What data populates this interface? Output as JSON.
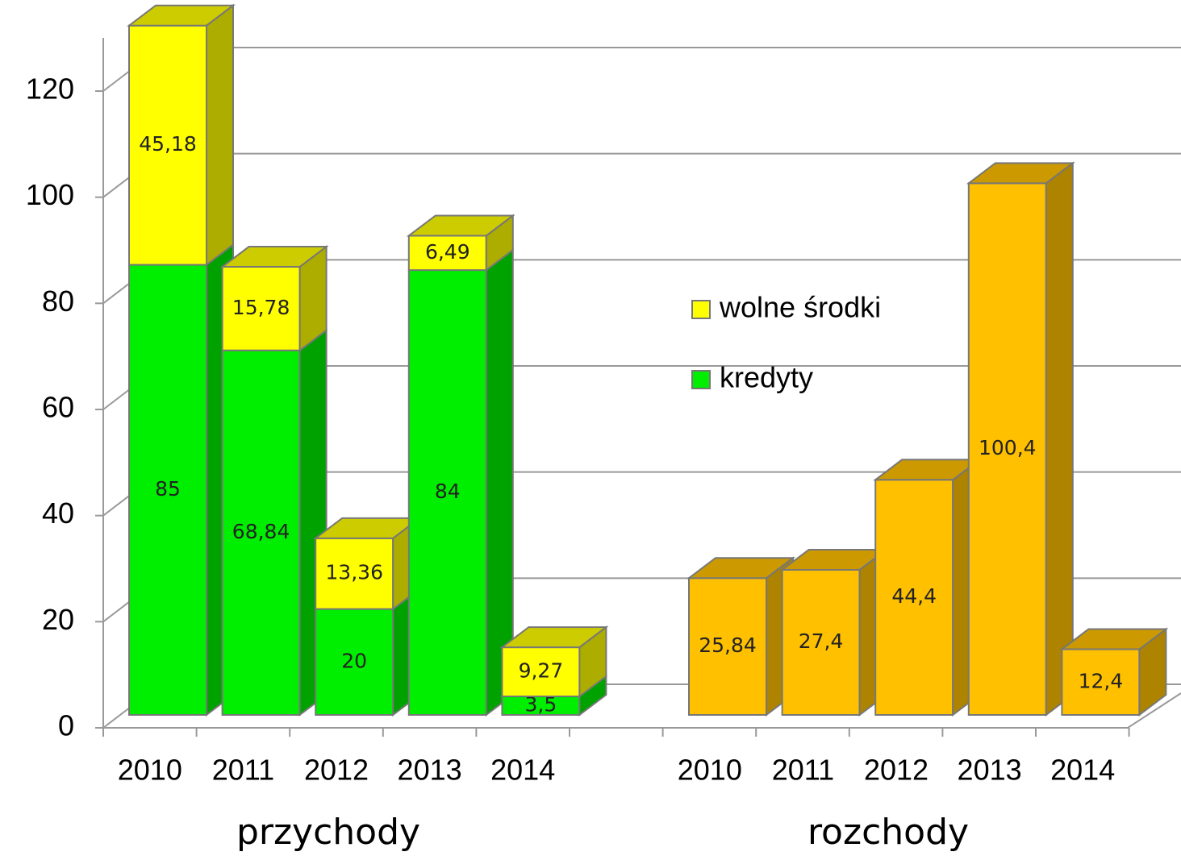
{
  "chart_data": {
    "type": "bar",
    "ylim": [
      0,
      130
    ],
    "yticks": [
      0,
      20,
      40,
      60,
      80,
      100,
      120
    ],
    "grid": true,
    "groups": [
      {
        "label": "przychody",
        "categories": [
          "2010",
          "2011",
          "2012",
          "2013",
          "2014"
        ],
        "series": [
          {
            "name": "kredyty",
            "color": "#00ee00",
            "values": [
              85,
              68.84,
              20,
              84,
              3.5
            ],
            "value_labels": [
              "85",
              "68,84",
              "20",
              "84",
              "3,5"
            ]
          },
          {
            "name": "wolne środki",
            "color": "#ffff00",
            "values": [
              45.18,
              15.78,
              13.36,
              6.49,
              9.27
            ],
            "value_labels": [
              "45,18",
              "15,78",
              "13,36",
              "6,49",
              "9,27"
            ]
          }
        ]
      },
      {
        "label": "rozchody",
        "categories": [
          "2010",
          "2011",
          "2012",
          "2013",
          "2014"
        ],
        "series": [
          {
            "color": "#ffc000",
            "values": [
              25.84,
              27.4,
              44.4,
              100.4,
              12.4
            ],
            "value_labels": [
              "25,84",
              "27,4",
              "44,4",
              "100,4",
              "12,4"
            ]
          }
        ]
      }
    ]
  }
}
